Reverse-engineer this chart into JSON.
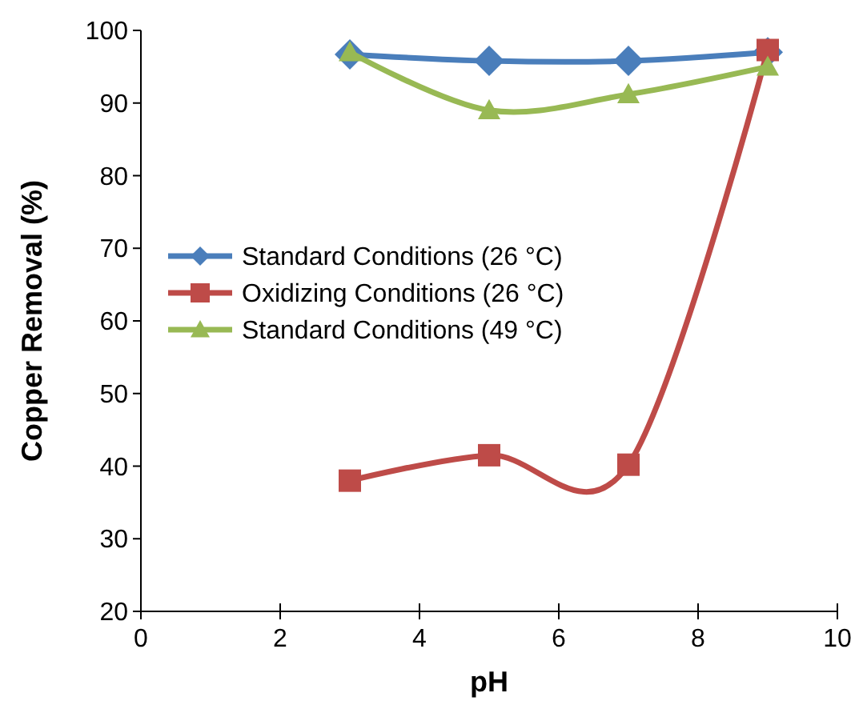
{
  "chart_data": {
    "type": "line",
    "xlabel": "pH",
    "ylabel": "Copper Removal (%)",
    "xlim": [
      0,
      10
    ],
    "xticks": [
      0,
      2,
      4,
      6,
      8,
      10
    ],
    "ylim": [
      20,
      100
    ],
    "yticks": [
      20,
      30,
      40,
      50,
      60,
      70,
      80,
      90,
      100
    ],
    "grid": false,
    "legend": "left",
    "line_style": "solid",
    "x": [
      3,
      5,
      7,
      9
    ],
    "series": [
      {
        "name": "Standard Conditions (26 °C)",
        "color": "#4a7ebb",
        "marker": "diamond",
        "values": [
          96.7,
          95.8,
          95.8,
          97
        ]
      },
      {
        "name": "Oxidizing Conditions (26 °C)",
        "color": "#be4b48",
        "marker": "square",
        "values": [
          38,
          41.5,
          40.2,
          97.3
        ]
      },
      {
        "name": "Standard Conditions (49 °C)",
        "color": "#98b954",
        "marker": "triangle",
        "values": [
          97,
          89,
          91.2,
          95
        ]
      }
    ]
  }
}
